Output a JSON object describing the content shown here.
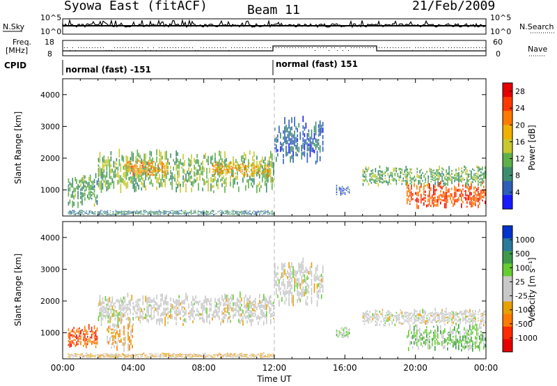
{
  "header": {
    "station": "Syowa East (fitACF)",
    "beam": "Beam 11",
    "date": "21/Feb/2009"
  },
  "top_panels": {
    "nsky_label": "N.Sky",
    "nsky_hi": "10^5",
    "nsky_lo": "10^0",
    "nsearch_label": "N.Search",
    "nsearch_hi": "10^5",
    "nsearch_lo": "10^0",
    "freq_label_1": "Freq.",
    "freq_label_2": "[MHz]",
    "freq_hi": "18",
    "freq_lo": "8",
    "nave_label": "Nave",
    "nave_hi": "60",
    "nave_lo": "0",
    "cpid_label": "CPID",
    "cpid_1": "normal (fast) -151",
    "cpid_2": "normal (fast) 151"
  },
  "panels": {
    "ylabel": "Slant Range [km]",
    "xlabel": "Time UT",
    "y_ticks": [
      "1000",
      "2000",
      "3000",
      "4000"
    ],
    "x_ticks": [
      "00:00",
      "04:00",
      "08:00",
      "12:00",
      "16:00",
      "20:00",
      "00:00"
    ],
    "power_label": "Power [dB]",
    "velocity_label": "Velocity [m s⁻¹]"
  },
  "colors": {
    "power_scale": [
      "#1a1aff",
      "#2e5fb8",
      "#3e8c6f",
      "#5fb04a",
      "#c8c830",
      "#f0b000",
      "#ff7a00",
      "#ff3a00",
      "#e60000"
    ],
    "velocity_scale": [
      "#0033cc",
      "#2a7a9a",
      "#3e9a4a",
      "#66cc33",
      "#c8c8c8",
      "#c8c8c8",
      "#e6a000",
      "#ff7a00",
      "#ff2a00",
      "#e60000"
    ]
  },
  "chart_data": [
    {
      "type": "heatmap",
      "title": "Power [dB]",
      "xlabel": "Time UT",
      "ylabel": "Slant Range [km]",
      "xlim": [
        0,
        24
      ],
      "ylim": [
        180,
        4500
      ],
      "colorbar_ticks": [
        "4",
        "8",
        "12",
        "16",
        "20",
        "24",
        "28"
      ],
      "colorbar_range": [
        0,
        30
      ],
      "regions": [
        {
          "t0": 0.3,
          "t1": 2.0,
          "r0": 400,
          "r1": 1600,
          "v": 10
        },
        {
          "t0": 2.0,
          "t1": 12.0,
          "r0": 900,
          "r1": 2300,
          "v": 12
        },
        {
          "t0": 3.5,
          "t1": 6.0,
          "r0": 1400,
          "r1": 2000,
          "v": 20
        },
        {
          "t0": 8.5,
          "t1": 11.8,
          "r0": 1400,
          "r1": 1900,
          "v": 19
        },
        {
          "t0": 12.0,
          "t1": 14.8,
          "r0": 1800,
          "r1": 3400,
          "v": 6
        },
        {
          "t0": 15.5,
          "t1": 16.3,
          "r0": 800,
          "r1": 1200,
          "v": 6
        },
        {
          "t0": 17.0,
          "t1": 24.0,
          "r0": 1100,
          "r1": 1800,
          "v": 11
        },
        {
          "t0": 19.5,
          "t1": 24.0,
          "r0": 400,
          "r1": 1300,
          "v": 24
        },
        {
          "t0": 0.3,
          "t1": 12.0,
          "r0": 200,
          "r1": 380,
          "v": 8
        }
      ]
    },
    {
      "type": "heatmap",
      "title": "Velocity [m s⁻¹]",
      "xlabel": "Time UT",
      "ylabel": "Slant Range [km]",
      "xlim": [
        0,
        24
      ],
      "ylim": [
        180,
        4500
      ],
      "colorbar_ticks": [
        "1000",
        "500",
        "100",
        "25",
        "-25",
        "-100",
        "-500",
        "-1000"
      ],
      "colorbar_range": [
        -1000,
        1000
      ],
      "regions": [
        {
          "t0": 0.3,
          "t1": 2.0,
          "r0": 500,
          "r1": 1300,
          "v": -600
        },
        {
          "t0": 2.5,
          "t1": 4.0,
          "r0": 400,
          "r1": 1500,
          "v": -300
        },
        {
          "t0": 2.0,
          "t1": 12.0,
          "r0": 1200,
          "r1": 2300,
          "v": 0
        },
        {
          "t0": 12.0,
          "t1": 14.8,
          "r0": 1800,
          "r1": 3400,
          "v": 0
        },
        {
          "t0": 15.5,
          "t1": 16.3,
          "r0": 800,
          "r1": 1200,
          "v": 200
        },
        {
          "t0": 17.0,
          "t1": 24.0,
          "r0": 1200,
          "r1": 1800,
          "v": 0
        },
        {
          "t0": 19.5,
          "t1": 24.0,
          "r0": 400,
          "r1": 1300,
          "v": 300
        },
        {
          "t0": 0.3,
          "t1": 12.0,
          "r0": 200,
          "r1": 380,
          "v": -200
        }
      ]
    }
  ]
}
